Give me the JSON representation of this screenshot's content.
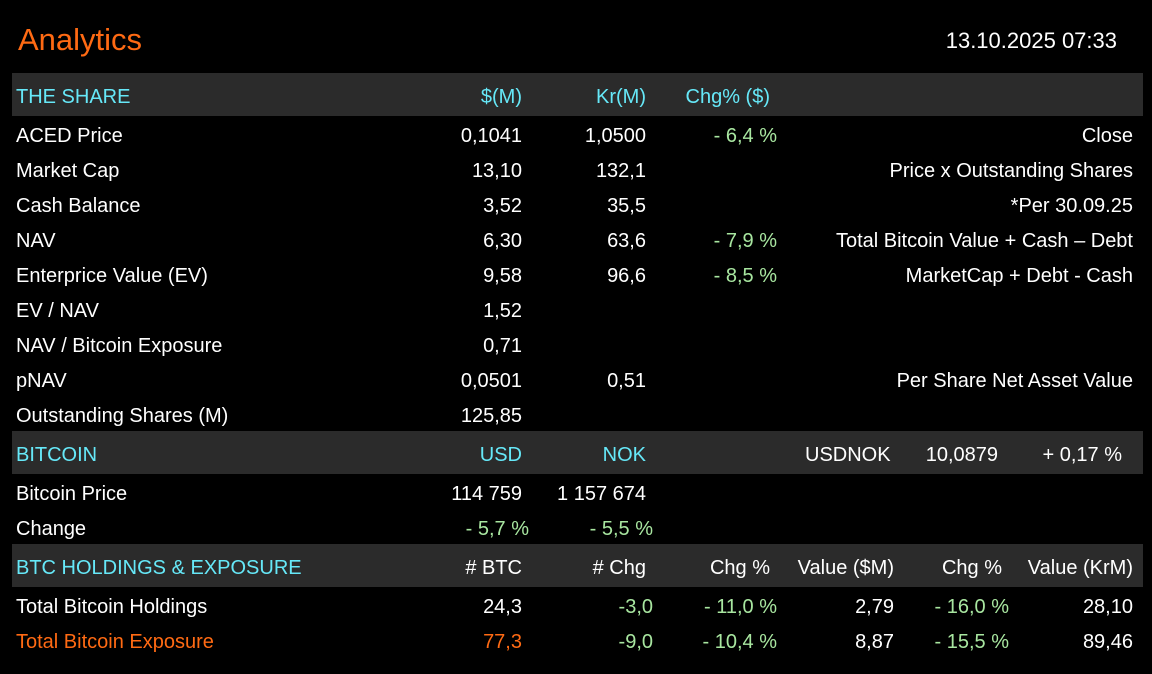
{
  "header": {
    "title": "Analytics",
    "datetime": "13.10.2025 07:33"
  },
  "colors": {
    "title": "#ff6a13",
    "section_header_text": "#66e8f8",
    "section_band": "#2b2b2b",
    "positive_green": "#a8e6a0",
    "exposure_orange": "#ff6a13"
  },
  "share": {
    "header": {
      "label": "THE SHARE",
      "col_usd": "$(M)",
      "col_nok": "Kr(M)",
      "col_chg": "Chg% ($)"
    },
    "rows": [
      {
        "label": "ACED Price",
        "usd": "0,1041",
        "nok": "1,0500",
        "chg": "- 6,4 %",
        "note": "Close"
      },
      {
        "label": "Market Cap",
        "usd": "13,10",
        "nok": "132,1",
        "chg": "",
        "note": "Price x Outstanding Shares"
      },
      {
        "label": "Cash Balance",
        "usd": "3,52",
        "nok": "35,5",
        "chg": "",
        "note": "*Per 30.09.25"
      },
      {
        "label": "NAV",
        "usd": "6,30",
        "nok": "63,6",
        "chg": "- 7,9 %",
        "note": "Total Bitcoin Value + Cash – Debt"
      },
      {
        "label": "Enterprice Value (EV)",
        "usd": "9,58",
        "nok": "96,6",
        "chg": "- 8,5 %",
        "note": "MarketCap + Debt - Cash"
      },
      {
        "label": "EV / NAV",
        "usd": "1,52",
        "nok": "",
        "chg": "",
        "note": ""
      },
      {
        "label": "NAV / Bitcoin Exposure",
        "usd": "0,71",
        "nok": "",
        "chg": "",
        "note": ""
      },
      {
        "label": "pNAV",
        "usd": "0,0501",
        "nok": "0,51",
        "chg": "",
        "note": "Per Share Net Asset Value"
      },
      {
        "label": "Outstanding Shares (M)",
        "usd": "125,85",
        "nok": "",
        "chg": "",
        "note": ""
      }
    ]
  },
  "bitcoin": {
    "header": {
      "label": "BITCOIN",
      "col_usd": "USD",
      "col_nok": "NOK",
      "fx_label": "USDNOK",
      "fx_value": "10,0879",
      "fx_chg": "+ 0,17 %"
    },
    "price": {
      "label": "Bitcoin Price",
      "usd": "114 759",
      "nok": "1 157 674"
    },
    "change": {
      "label": "Change",
      "usd": "- 5,7 %",
      "nok": "- 5,5 %"
    }
  },
  "holdings": {
    "header": {
      "label": "BTC HOLDINGS & EXPOSURE",
      "col_btc": "# BTC",
      "col_chg": "# Chg",
      "col_chg_pct": "Chg %",
      "col_value_usd": "Value ($M)",
      "col_chg_pct2": "Chg %",
      "col_value_nok": "Value (KrM)"
    },
    "rows": [
      {
        "label": "Total Bitcoin Holdings",
        "btc": "24,3",
        "chg": "-3,0",
        "chg_pct": "- 11,0 %",
        "value_usd": "2,79",
        "chg_pct2": "- 16,0 %",
        "value_nok": "28,10"
      },
      {
        "label": "Total Bitcoin Exposure",
        "btc": "77,3",
        "chg": "-9,0",
        "chg_pct": "- 10,4 %",
        "value_usd": "8,87",
        "chg_pct2": "- 15,5 %",
        "value_nok": "89,46"
      }
    ]
  }
}
